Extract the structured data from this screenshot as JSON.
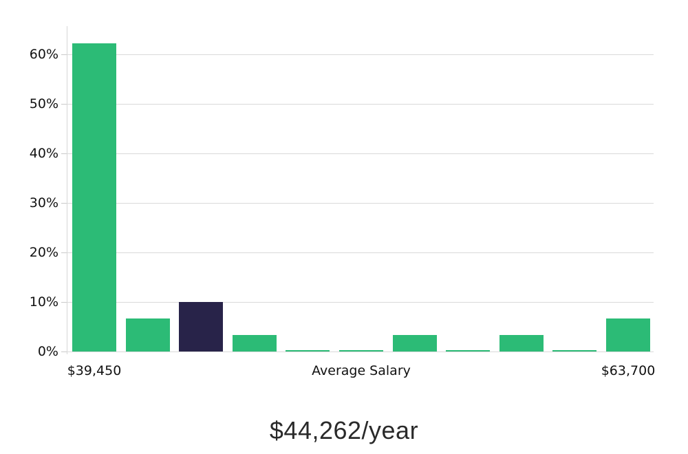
{
  "chart_data": {
    "type": "bar",
    "title": "$44,262/year",
    "x_axis_labels": [
      "$39,450",
      "Average Salary",
      "$63,700"
    ],
    "y_tick_labels": [
      "0%",
      "10%",
      "20%",
      "30%",
      "40%",
      "50%",
      "60%"
    ],
    "y_tick_values": [
      0,
      10,
      20,
      30,
      40,
      50,
      60
    ],
    "ylim": [
      0,
      65.7
    ],
    "categories": [
      "bin-1",
      "bin-2",
      "bin-3",
      "bin-4",
      "bin-5",
      "bin-6",
      "bin-7",
      "bin-8",
      "bin-9",
      "bin-10",
      "bin-11"
    ],
    "values": [
      62.2,
      6.7,
      10.0,
      3.4,
      0.3,
      0.3,
      3.4,
      0.3,
      3.4,
      0.3,
      6.7
    ],
    "highlight_index": 2,
    "legend": "none",
    "grid": "horizontal",
    "colors": {
      "bar": "#2cbb76",
      "highlight": "#282349",
      "gridline": "#d9d9d9",
      "axis_text": "#111111",
      "title_text": "#2a2a2a"
    }
  }
}
